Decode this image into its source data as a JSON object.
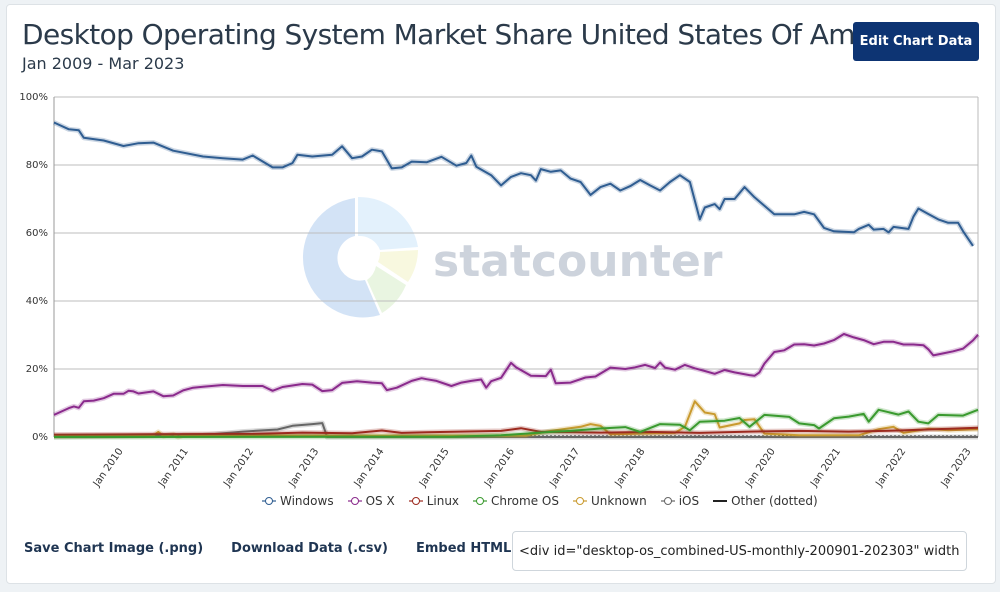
{
  "header": {
    "title": "Desktop Operating System Market Share United States Of America",
    "subtitle": "Jan 2009 - Mar 2023",
    "edit_button": "Edit Chart Data"
  },
  "watermark": {
    "text": "statcounter"
  },
  "footer": {
    "save_image": "Save Chart Image (.png)",
    "download_data": "Download Data (.csv)",
    "embed_label": "Embed HTML",
    "embed_value": "<div id=\"desktop-os_combined-US-monthly-200901-202303\" width"
  },
  "chart_data": {
    "type": "line",
    "title": "Desktop Operating System Market Share United States Of America",
    "subtitle": "Jan 2009 - Mar 2023",
    "xlabel": "",
    "ylabel": "",
    "ylim": [
      0,
      100
    ],
    "y_ticks": [
      "0%",
      "20%",
      "40%",
      "60%",
      "80%",
      "100%"
    ],
    "x_range_months": [
      "2009-01",
      "2023-03"
    ],
    "x_ticks": [
      "Jan 2010",
      "Jan 2011",
      "Jan 2012",
      "Jan 2013",
      "Jan 2014",
      "Jan 2015",
      "Jan 2016",
      "Jan 2017",
      "Jan 2018",
      "Jan 2019",
      "Jan 2020",
      "Jan 2021",
      "Jan 2022",
      "Jan 2023"
    ],
    "grid": true,
    "legend_position": "bottom",
    "series": [
      {
        "name": "Windows",
        "color": "#2f5d91",
        "points": [
          [
            0,
            92.5
          ],
          [
            3,
            90.5
          ],
          [
            5,
            90.2
          ],
          [
            6,
            88
          ],
          [
            10,
            87.2
          ],
          [
            14,
            85.6
          ],
          [
            17,
            86.4
          ],
          [
            20,
            86.6
          ],
          [
            24,
            84.2
          ],
          [
            30,
            82.5
          ],
          [
            34,
            82
          ],
          [
            38,
            81.6
          ],
          [
            40,
            82.8
          ],
          [
            44,
            79.3
          ],
          [
            46,
            79.3
          ],
          [
            48,
            80.6
          ],
          [
            49,
            83
          ],
          [
            52,
            82.5
          ],
          [
            56,
            83
          ],
          [
            58,
            85.5
          ],
          [
            60,
            82
          ],
          [
            62,
            82.5
          ],
          [
            64,
            84.5
          ],
          [
            66,
            84
          ],
          [
            68,
            79
          ],
          [
            70,
            79.3
          ],
          [
            72,
            81
          ],
          [
            75,
            80.8
          ],
          [
            78,
            82.4
          ],
          [
            81,
            79.8
          ],
          [
            83,
            80.6
          ],
          [
            84,
            82.8
          ],
          [
            85,
            79.5
          ],
          [
            88,
            77
          ],
          [
            90,
            74
          ],
          [
            92,
            76.5
          ],
          [
            94,
            77.6
          ],
          [
            96,
            77
          ],
          [
            97,
            75.4
          ],
          [
            98,
            78.8
          ],
          [
            100,
            78
          ],
          [
            102,
            78.4
          ],
          [
            104,
            76
          ],
          [
            106,
            75
          ],
          [
            108,
            71.2
          ],
          [
            110,
            73.5
          ],
          [
            112,
            74.5
          ],
          [
            114,
            72.5
          ],
          [
            116,
            73.8
          ],
          [
            118,
            75.6
          ],
          [
            120,
            74
          ],
          [
            122,
            72.5
          ],
          [
            124,
            75
          ],
          [
            126,
            77
          ],
          [
            128,
            75
          ],
          [
            130,
            64
          ],
          [
            131,
            67.5
          ],
          [
            133,
            68.5
          ],
          [
            134,
            67
          ],
          [
            135,
            70
          ],
          [
            137,
            70
          ],
          [
            139,
            73.5
          ],
          [
            141,
            70.5
          ],
          [
            143,
            68
          ],
          [
            145,
            65.5
          ],
          [
            149,
            65.5
          ],
          [
            151,
            66.2
          ],
          [
            153,
            65.5
          ],
          [
            155,
            61.5
          ],
          [
            157,
            60.5
          ],
          [
            161,
            60.2
          ],
          [
            162,
            61.2
          ],
          [
            164,
            62.4
          ],
          [
            165,
            61
          ],
          [
            167,
            61.2
          ],
          [
            168,
            60.2
          ],
          [
            169,
            61.8
          ],
          [
            171,
            61.4
          ],
          [
            172,
            61.2
          ],
          [
            173,
            64.8
          ],
          [
            174,
            67.2
          ],
          [
            176,
            65.6
          ],
          [
            178,
            64
          ],
          [
            180,
            63
          ],
          [
            182,
            63
          ],
          [
            183,
            60.5
          ],
          [
            185,
            56.2
          ]
        ]
      },
      {
        "name": "OS X",
        "color": "#8a2a8c",
        "points": [
          [
            0,
            6.5
          ],
          [
            3,
            8.5
          ],
          [
            4,
            9
          ],
          [
            5,
            8.6
          ],
          [
            6,
            10.5
          ],
          [
            8,
            10.7
          ],
          [
            10,
            11.4
          ],
          [
            12,
            12.7
          ],
          [
            14,
            12.7
          ],
          [
            15,
            13.6
          ],
          [
            16,
            13.4
          ],
          [
            17,
            12.8
          ],
          [
            20,
            13.4
          ],
          [
            22,
            12
          ],
          [
            24,
            12.2
          ],
          [
            26,
            13.7
          ],
          [
            28,
            14.5
          ],
          [
            30,
            14.8
          ],
          [
            34,
            15.3
          ],
          [
            38,
            15
          ],
          [
            42,
            15
          ],
          [
            44,
            13.6
          ],
          [
            46,
            14.7
          ],
          [
            50,
            15.6
          ],
          [
            52,
            15.4
          ],
          [
            54,
            13.5
          ],
          [
            56,
            13.8
          ],
          [
            58,
            15.9
          ],
          [
            61,
            16.4
          ],
          [
            64,
            16
          ],
          [
            66,
            15.8
          ],
          [
            67,
            13.8
          ],
          [
            69,
            14.5
          ],
          [
            72,
            16.5
          ],
          [
            74,
            17.3
          ],
          [
            75,
            17
          ],
          [
            77,
            16.5
          ],
          [
            80,
            15
          ],
          [
            82,
            16
          ],
          [
            84,
            16.5
          ],
          [
            86,
            16.9
          ],
          [
            87,
            14.5
          ],
          [
            88,
            16.4
          ],
          [
            90,
            17.4
          ],
          [
            92,
            21.8
          ],
          [
            93,
            20.5
          ],
          [
            96,
            18
          ],
          [
            99,
            17.9
          ],
          [
            100,
            19.8
          ],
          [
            101,
            15.8
          ],
          [
            104,
            16
          ],
          [
            107,
            17.5
          ],
          [
            109,
            17.8
          ],
          [
            112,
            20.4
          ],
          [
            115,
            20
          ],
          [
            117,
            20.5
          ],
          [
            119,
            21.2
          ],
          [
            121,
            20.3
          ],
          [
            122,
            21.9
          ],
          [
            123,
            20.4
          ],
          [
            125,
            19.8
          ],
          [
            127,
            21.2
          ],
          [
            129,
            20.2
          ],
          [
            131,
            19.4
          ],
          [
            133,
            18.6
          ],
          [
            135,
            19.7
          ],
          [
            137,
            19
          ],
          [
            140,
            18.2
          ],
          [
            141,
            18
          ],
          [
            142,
            19
          ],
          [
            143,
            21.6
          ],
          [
            145,
            25
          ],
          [
            147,
            25.5
          ],
          [
            149,
            27.2
          ],
          [
            151,
            27.3
          ],
          [
            153,
            26.9
          ],
          [
            155,
            27.5
          ],
          [
            157,
            28.5
          ],
          [
            159,
            30.3
          ],
          [
            161,
            29.3
          ],
          [
            163,
            28.5
          ],
          [
            165,
            27.3
          ],
          [
            167,
            28
          ],
          [
            169,
            28
          ],
          [
            171,
            27.2
          ],
          [
            173,
            27.2
          ],
          [
            175,
            27
          ],
          [
            176,
            25.8
          ],
          [
            177,
            24
          ],
          [
            179,
            24.6
          ],
          [
            181,
            25.2
          ],
          [
            183,
            26
          ],
          [
            185,
            28.4
          ],
          [
            186,
            30.1
          ]
        ]
      },
      {
        "name": "Linux",
        "color": "#9c2a1f",
        "points": [
          [
            0,
            0.7
          ],
          [
            20,
            0.8
          ],
          [
            40,
            0.9
          ],
          [
            50,
            1.3
          ],
          [
            60,
            1.1
          ],
          [
            66,
            1.9
          ],
          [
            70,
            1.2
          ],
          [
            75,
            1.4
          ],
          [
            90,
            1.8
          ],
          [
            94,
            2.6
          ],
          [
            98,
            1.5
          ],
          [
            110,
            1.3
          ],
          [
            120,
            1.5
          ],
          [
            130,
            1.2
          ],
          [
            140,
            1.6
          ],
          [
            150,
            1.8
          ],
          [
            160,
            1.6
          ],
          [
            170,
            1.9
          ],
          [
            186,
            2.7
          ]
        ]
      },
      {
        "name": "Chrome OS",
        "color": "#3a9a2f",
        "points": [
          [
            0,
            0
          ],
          [
            80,
            0.1
          ],
          [
            90,
            0.5
          ],
          [
            100,
            1.5
          ],
          [
            104,
            1.8
          ],
          [
            110,
            2.5
          ],
          [
            115,
            2.9
          ],
          [
            118,
            1.5
          ],
          [
            122,
            3.8
          ],
          [
            126,
            3.6
          ],
          [
            128,
            2
          ],
          [
            130,
            4.5
          ],
          [
            135,
            4.8
          ],
          [
            138,
            5.6
          ],
          [
            140,
            3
          ],
          [
            143,
            6.5
          ],
          [
            148,
            5.9
          ],
          [
            150,
            4
          ],
          [
            153,
            3.5
          ],
          [
            154,
            2.5
          ],
          [
            157,
            5.5
          ],
          [
            160,
            6
          ],
          [
            163,
            6.8
          ],
          [
            164,
            4.5
          ],
          [
            166,
            8
          ],
          [
            168,
            7.3
          ],
          [
            170,
            6.6
          ],
          [
            172,
            7.5
          ],
          [
            174,
            4.5
          ],
          [
            176,
            4
          ],
          [
            178,
            6.5
          ],
          [
            183,
            6.3
          ],
          [
            186,
            8
          ]
        ]
      },
      {
        "name": "Unknown",
        "color": "#c99a2e",
        "points": [
          [
            0,
            0.2
          ],
          [
            20,
            0.4
          ],
          [
            21,
            1.5
          ],
          [
            22,
            0.3
          ],
          [
            24,
            0.8
          ],
          [
            25,
            -0.5
          ],
          [
            26,
            0.5
          ],
          [
            60,
            0.4
          ],
          [
            95,
            0.4
          ],
          [
            100,
            1.8
          ],
          [
            106,
            3
          ],
          [
            108,
            3.8
          ],
          [
            110,
            3.3
          ],
          [
            112,
            0.8
          ],
          [
            125,
            1.2
          ],
          [
            127,
            3
          ],
          [
            129,
            10.5
          ],
          [
            131,
            7.2
          ],
          [
            133,
            6.7
          ],
          [
            134,
            2.8
          ],
          [
            138,
            4
          ],
          [
            139,
            5
          ],
          [
            141,
            5.2
          ],
          [
            143,
            1
          ],
          [
            150,
            0.5
          ],
          [
            162,
            0.5
          ],
          [
            166,
            2.3
          ],
          [
            169,
            3
          ],
          [
            171,
            1.2
          ],
          [
            176,
            2.4
          ],
          [
            180,
            2
          ],
          [
            186,
            2.3
          ]
        ]
      },
      {
        "name": "iOS",
        "color": "#666666",
        "points": [
          [
            0,
            0
          ],
          [
            30,
            0.6
          ],
          [
            38,
            1.6
          ],
          [
            45,
            2.2
          ],
          [
            48,
            3.3
          ],
          [
            52,
            3.8
          ],
          [
            54,
            4.1
          ],
          [
            55,
            0
          ],
          [
            60,
            0
          ],
          [
            186,
            0
          ]
        ]
      },
      {
        "name": "Other (dotted)",
        "color": "#222222",
        "dotted": true,
        "points": [
          [
            0,
            0.2
          ],
          [
            186,
            0.2
          ]
        ]
      }
    ]
  }
}
